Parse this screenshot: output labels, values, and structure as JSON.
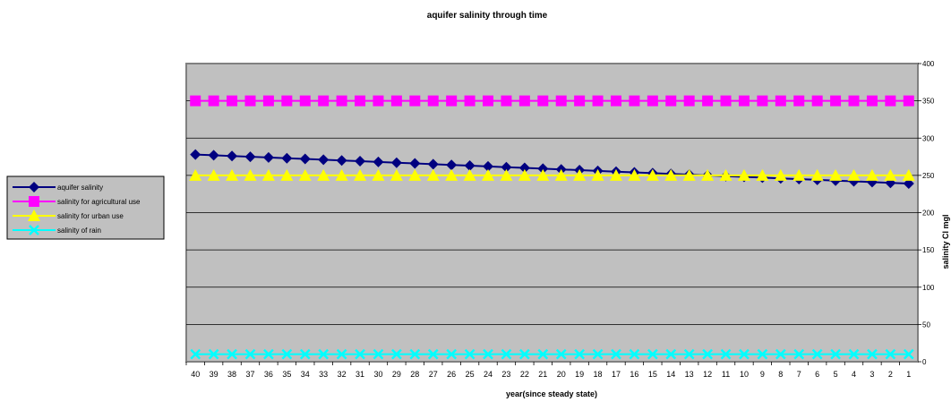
{
  "chart_data": {
    "type": "line",
    "title": "aquifer salinity through time",
    "xlabel": "year(since steady state)",
    "ylabel": "salinity Cl mgl",
    "ylim": [
      0,
      400
    ],
    "yticks": [
      0,
      50,
      100,
      150,
      200,
      250,
      300,
      350,
      400
    ],
    "grid": true,
    "legend_position": "left",
    "plot_background": "#c0c0c0",
    "categories": [
      "40",
      "39",
      "38",
      "37",
      "36",
      "35",
      "34",
      "33",
      "32",
      "31",
      "30",
      "29",
      "28",
      "27",
      "26",
      "25",
      "24",
      "23",
      "22",
      "21",
      "20",
      "19",
      "18",
      "17",
      "16",
      "15",
      "14",
      "13",
      "12",
      "11",
      "10",
      "9",
      "8",
      "7",
      "6",
      "5",
      "4",
      "3",
      "2",
      "1"
    ],
    "series": [
      {
        "name": "aquifer salinity",
        "color": "#000080",
        "marker": "diamond",
        "values": [
          278,
          277,
          276,
          275,
          274,
          273,
          272,
          271,
          270,
          269,
          268,
          267,
          266,
          265,
          264,
          263,
          262,
          261,
          260,
          259,
          258,
          257,
          256,
          255,
          254,
          253,
          252,
          251,
          250,
          249,
          248,
          247,
          246,
          245,
          244,
          243,
          242,
          241,
          240,
          239
        ]
      },
      {
        "name": "salinity for agricultural use",
        "color": "#ff00ff",
        "marker": "square",
        "values": [
          350,
          350,
          350,
          350,
          350,
          350,
          350,
          350,
          350,
          350,
          350,
          350,
          350,
          350,
          350,
          350,
          350,
          350,
          350,
          350,
          350,
          350,
          350,
          350,
          350,
          350,
          350,
          350,
          350,
          350,
          350,
          350,
          350,
          350,
          350,
          350,
          350,
          350,
          350,
          350
        ]
      },
      {
        "name": "salinity for urban use",
        "color": "#ffff00",
        "marker": "triangle",
        "values": [
          250,
          250,
          250,
          250,
          250,
          250,
          250,
          250,
          250,
          250,
          250,
          250,
          250,
          250,
          250,
          250,
          250,
          250,
          250,
          250,
          250,
          250,
          250,
          250,
          250,
          250,
          250,
          250,
          250,
          250,
          250,
          250,
          250,
          250,
          250,
          250,
          250,
          250,
          250,
          250
        ]
      },
      {
        "name": "salinity of rain",
        "color": "#00ffff",
        "marker": "x",
        "values": [
          10,
          10,
          10,
          10,
          10,
          10,
          10,
          10,
          10,
          10,
          10,
          10,
          10,
          10,
          10,
          10,
          10,
          10,
          10,
          10,
          10,
          10,
          10,
          10,
          10,
          10,
          10,
          10,
          10,
          10,
          10,
          10,
          10,
          10,
          10,
          10,
          10,
          10,
          10,
          10
        ]
      }
    ]
  }
}
